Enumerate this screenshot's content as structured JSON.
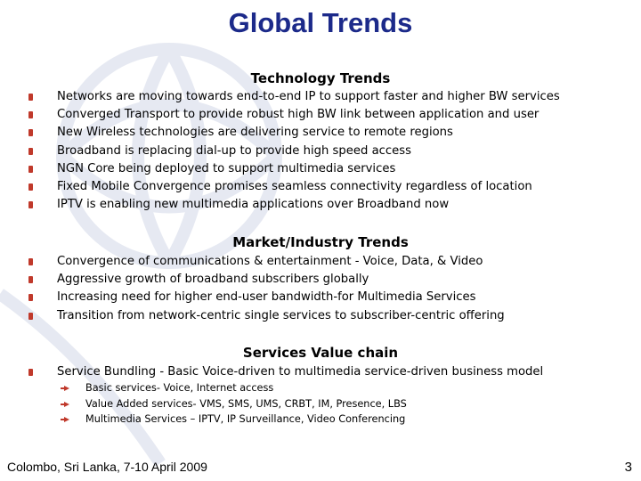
{
  "title": "Global Trends",
  "sections": [
    {
      "heading": "Technology Trends",
      "items": [
        "Networks are moving towards end-to-end IP to support faster and higher BW services",
        "Converged Transport to provide robust high BW link between application and user",
        "New Wireless technologies are delivering service to remote regions",
        "Broadband is replacing dial-up to provide high speed access",
        "NGN Core being deployed to support multimedia services",
        "Fixed Mobile Convergence promises seamless connectivity regardless of location",
        "IPTV is enabling new multimedia applications over Broadband now"
      ]
    },
    {
      "heading": "Market/Industry Trends",
      "items": [
        "Convergence of communications & entertainment - Voice, Data, & Video",
        "Aggressive growth of broadband subscribers globally",
        "Increasing need for higher end-user bandwidth-for Multimedia Services",
        "Transition from network-centric single services to subscriber-centric offering"
      ]
    },
    {
      "heading": "Services Value chain",
      "items": [
        "Service Bundling - Basic Voice-driven to multimedia service-driven business model"
      ],
      "subitems": [
        "Basic services- Voice, Internet access",
        "Value Added services- VMS, SMS, UMS, CRBT, IM, Presence, LBS",
        "Multimedia Services – IPTV, IP Surveillance, Video Conferencing"
      ]
    }
  ],
  "footer": "Colombo, Sri Lanka, 7-10 April 2009",
  "page_number": "3",
  "colors": {
    "title": "#1c2a8a",
    "bullet": "#c0392b",
    "watermark": "#e6e9f2"
  },
  "watermark_icon": "itu-globe-logo-icon"
}
